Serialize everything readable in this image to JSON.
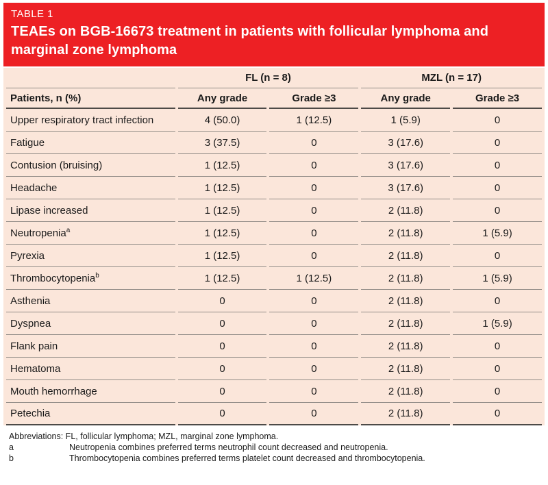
{
  "header": {
    "table_label": "TABLE 1",
    "title": "TEAEs on BGB-16673 treatment in patients with follicular lymphoma and marginal zone lymphoma"
  },
  "table": {
    "group_headers": [
      {
        "label": "FL (n = 8)"
      },
      {
        "label": "MZL (n = 17)"
      }
    ],
    "col_header_label": "Patients, n (%)",
    "sub_headers": [
      "Any grade",
      "Grade ≥3",
      "Any grade",
      "Grade ≥3"
    ],
    "rows": [
      {
        "label": "Upper respiratory tract infection",
        "values": [
          "4 (50.0)",
          "1 (12.5)",
          "1 (5.9)",
          "0"
        ]
      },
      {
        "label": "Fatigue",
        "values": [
          "3 (37.5)",
          "0",
          "3 (17.6)",
          "0"
        ]
      },
      {
        "label": "Contusion (bruising)",
        "values": [
          "1 (12.5)",
          "0",
          "3 (17.6)",
          "0"
        ]
      },
      {
        "label": "Headache",
        "values": [
          "1 (12.5)",
          "0",
          "3 (17.6)",
          "0"
        ]
      },
      {
        "label": "Lipase increased",
        "values": [
          "1 (12.5)",
          "0",
          "2 (11.8)",
          "0"
        ]
      },
      {
        "label": "Neutropenia",
        "sup": "a",
        "values": [
          "1 (12.5)",
          "0",
          "2 (11.8)",
          "1 (5.9)"
        ]
      },
      {
        "label": "Pyrexia",
        "values": [
          "1 (12.5)",
          "0",
          "2 (11.8)",
          "0"
        ]
      },
      {
        "label": "Thrombocytopenia",
        "sup": "b",
        "values": [
          "1 (12.5)",
          "1 (12.5)",
          "2 (11.8)",
          "1 (5.9)"
        ]
      },
      {
        "label": "Asthenia",
        "values": [
          "0",
          "0",
          "2 (11.8)",
          "0"
        ]
      },
      {
        "label": "Dyspnea",
        "values": [
          "0",
          "0",
          "2 (11.8)",
          "1 (5.9)"
        ]
      },
      {
        "label": "Flank pain",
        "values": [
          "0",
          "0",
          "2 (11.8)",
          "0"
        ]
      },
      {
        "label": "Hematoma",
        "values": [
          "0",
          "0",
          "2 (11.8)",
          "0"
        ]
      },
      {
        "label": "Mouth hemorrhage",
        "values": [
          "0",
          "0",
          "2 (11.8)",
          "0"
        ]
      },
      {
        "label": "Petechia",
        "values": [
          "0",
          "0",
          "2 (11.8)",
          "0"
        ]
      }
    ]
  },
  "footnotes": {
    "abbreviations": "Abbreviations: FL, follicular lymphoma; MZL, marginal zone lymphoma.",
    "items": [
      {
        "marker": "a",
        "text": "Neutropenia combines preferred terms neutrophil count decreased and neutropenia."
      },
      {
        "marker": "b",
        "text": "Thrombocytopenia combines preferred terms platelet count decreased and thrombocytopenia."
      }
    ]
  },
  "colors": {
    "header_red": "#ED2024",
    "table_bg": "#FBE6DA",
    "line_thin": "#8F8A85",
    "line_thick": "#4D4A47",
    "title_text": "#FFFFFF",
    "body_text": "#1A1A1A"
  }
}
